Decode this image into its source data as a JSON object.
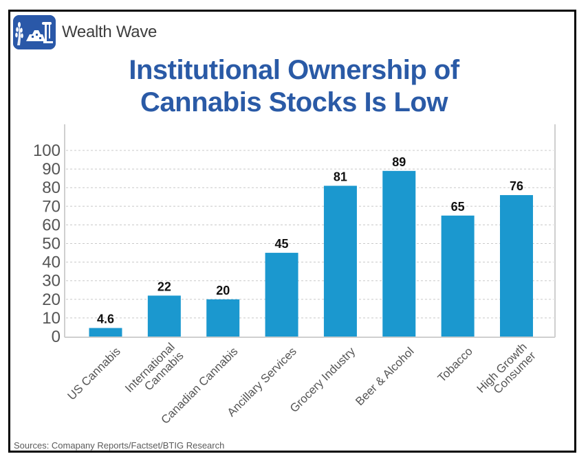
{
  "brand": {
    "name": "Wealth Wave",
    "logo_icon": "wheat-gold-oil-pump-icon"
  },
  "title_lines": [
    "Institutional Ownership of",
    "Cannabis Stocks Is Low"
  ],
  "source": "Sources: Comapany Reports/Factset/BTIG Research",
  "colors": {
    "bar": "#1b98cf",
    "title": "#2a5aa6",
    "grid": "#c8c8c8",
    "axis": "#cfcfcf",
    "tick_label": "#555555",
    "data_label": "#111111"
  },
  "chart_data": {
    "type": "bar",
    "title": "Institutional Ownership of Cannabis Stocks Is Low",
    "xlabel": "",
    "ylabel": "",
    "categories": [
      "US Cannabis",
      "International Cannabis",
      "Canadian Cannabis",
      "Ancillary Services",
      "Grocery Industry",
      "Beer & Alcohol",
      "Tobacco",
      "High Growth Consumer"
    ],
    "category_lines": [
      [
        "US Cannabis"
      ],
      [
        "International",
        "Cannabis"
      ],
      [
        "Canadian Cannabis"
      ],
      [
        "Ancillary Services"
      ],
      [
        "Grocery Industry"
      ],
      [
        "Beer & Alcohol"
      ],
      [
        "Tobacco"
      ],
      [
        "High Growth",
        "Consumer"
      ]
    ],
    "values": [
      4.6,
      22,
      20,
      45,
      81,
      89,
      65,
      76
    ],
    "data_labels": [
      "4.6",
      "22",
      "20",
      "45",
      "81",
      "89",
      "65",
      "76"
    ],
    "ylim": [
      0,
      100
    ],
    "yticks": [
      0,
      10,
      20,
      30,
      40,
      50,
      60,
      70,
      80,
      90,
      100
    ],
    "grid": true,
    "grid_style": "dashed",
    "legend": "none",
    "tick_label_rotation": "-45deg"
  }
}
